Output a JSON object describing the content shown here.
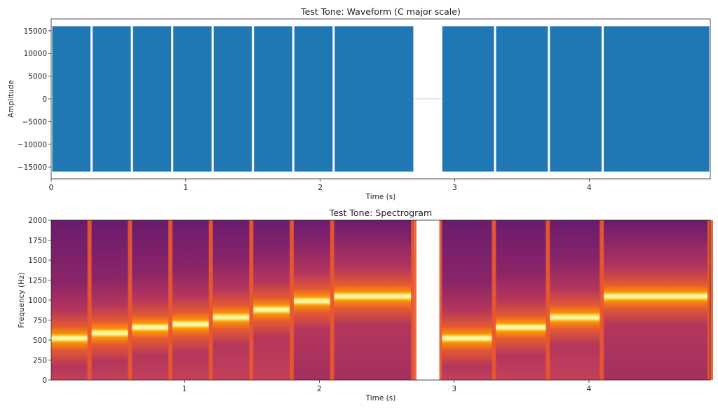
{
  "chart_data": [
    {
      "type": "line",
      "title": "Test Tone: Waveform (C major scale)",
      "xlabel": "Time (s)",
      "ylabel": "Amplitude",
      "xlim": [
        0,
        4.9
      ],
      "ylim": [
        -17600,
        17600
      ],
      "xticks": [
        "0",
        "1",
        "2",
        "3",
        "4"
      ],
      "yticks": [
        "15000",
        "10000",
        "5000",
        "0",
        "−5000",
        "−10000",
        "−15000"
      ],
      "color": "#1f77b4",
      "amplitude": 16000,
      "segments": [
        {
          "start": 0.0,
          "end": 0.3,
          "freq_hz": 523
        },
        {
          "start": 0.3,
          "end": 0.6,
          "freq_hz": 587
        },
        {
          "start": 0.6,
          "end": 0.9,
          "freq_hz": 659
        },
        {
          "start": 0.9,
          "end": 1.2,
          "freq_hz": 698
        },
        {
          "start": 1.2,
          "end": 1.5,
          "freq_hz": 784
        },
        {
          "start": 1.5,
          "end": 1.8,
          "freq_hz": 880
        },
        {
          "start": 1.8,
          "end": 2.1,
          "freq_hz": 988
        },
        {
          "start": 2.1,
          "end": 2.7,
          "freq_hz": 1047
        },
        {
          "start": 2.7,
          "end": 2.9,
          "freq_hz": 0
        },
        {
          "start": 2.9,
          "end": 3.3,
          "freq_hz": 523
        },
        {
          "start": 3.3,
          "end": 3.7,
          "freq_hz": 659
        },
        {
          "start": 3.7,
          "end": 4.1,
          "freq_hz": 784
        },
        {
          "start": 4.1,
          "end": 4.9,
          "freq_hz": 1047
        }
      ]
    },
    {
      "type": "heatmap",
      "title": "Test Tone: Spectrogram",
      "xlabel": "Time (s)",
      "ylabel": "Frequency (Hz)",
      "xlim": [
        0,
        4.9
      ],
      "ylim": [
        0,
        2000
      ],
      "xticks": [
        "1",
        "2",
        "3",
        "4"
      ],
      "yticks": [
        "2000",
        "1750",
        "1500",
        "1250",
        "1000",
        "750",
        "500",
        "250",
        "0"
      ],
      "colormap": "inferno"
    }
  ]
}
